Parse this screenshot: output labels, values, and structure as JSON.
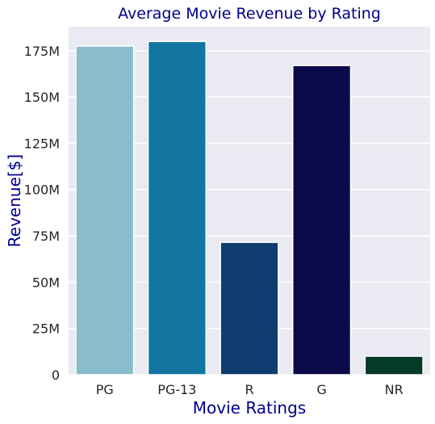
{
  "colors": {
    "plot_background": "#eaeaf2",
    "grid": "#ffffff",
    "title": "#00008b",
    "axis_label": "#00008b",
    "tick_label": "#262626",
    "bar_edge": "#ffffff"
  },
  "chart_data": {
    "type": "bar",
    "title": "Average Movie Revenue by Rating",
    "xlabel": "Movie Ratings",
    "ylabel": "Revenue[$]",
    "categories": [
      "PG",
      "PG-13",
      "R",
      "G",
      "NR"
    ],
    "values": [
      177500000,
      180000000,
      71500000,
      167000000,
      10000000
    ],
    "bar_colors": [
      "#8bbccc",
      "#1376a0",
      "#0f3c6e",
      "#0a0a4a",
      "#053a26"
    ],
    "ylim": [
      0,
      188000000
    ],
    "yticks": [
      0,
      25000000,
      50000000,
      75000000,
      100000000,
      125000000,
      150000000,
      175000000
    ],
    "ytick_labels": [
      "0",
      "25M",
      "50M",
      "75M",
      "100M",
      "125M",
      "150M",
      "175M"
    ],
    "grid": "horizontal",
    "legend": "none"
  }
}
